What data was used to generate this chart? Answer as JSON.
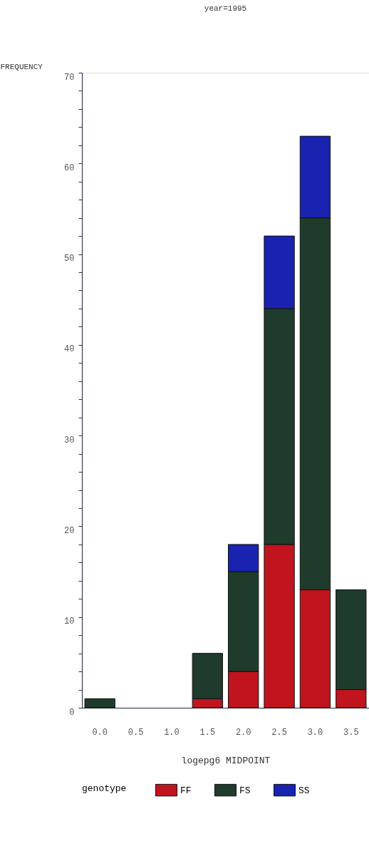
{
  "chart_data": {
    "type": "bar",
    "title": "year=1995",
    "xlabel": "logepg6 MIDPOINT",
    "ylabel": "FREQUENCY",
    "legend_title": "genotype",
    "categories": [
      "0.0",
      "0.5",
      "1.0",
      "1.5",
      "2.0",
      "2.5",
      "3.0",
      "3.5"
    ],
    "stacked": true,
    "legend": "bottom",
    "ylim": [
      0,
      70
    ],
    "yticks": [
      0,
      {
        "value": 2,
        "label": null
      },
      {
        "value": 4,
        "label": null
      },
      {
        "value": 6,
        "label": null
      },
      {
        "value": 8,
        "label": null
      },
      10,
      {
        "value": 12,
        "label": null
      },
      {
        "value": 14,
        "label": null
      },
      {
        "value": 16,
        "label": null
      },
      {
        "value": 18,
        "label": null
      },
      20,
      {
        "value": 22,
        "label": null
      },
      {
        "value": 24,
        "label": null
      },
      {
        "value": 26,
        "label": null
      },
      {
        "value": 28,
        "label": null
      },
      30,
      {
        "value": 32,
        "label": null
      },
      {
        "value": 34,
        "label": null
      },
      {
        "value": 36,
        "label": null
      },
      {
        "value": 38,
        "label": null
      },
      40,
      {
        "value": 42,
        "label": null
      },
      {
        "value": 44,
        "label": null
      },
      {
        "value": 46,
        "label": null
      },
      {
        "value": 48,
        "label": null
      },
      50,
      {
        "value": 52,
        "label": null
      },
      {
        "value": 54,
        "label": null
      },
      {
        "value": 56,
        "label": null
      },
      {
        "value": 58,
        "label": null
      },
      60,
      {
        "value": 62,
        "label": null
      },
      {
        "value": 64,
        "label": null
      },
      {
        "value": 66,
        "label": null
      },
      {
        "value": 68,
        "label": null
      },
      70
    ],
    "series": [
      {
        "name": "FF",
        "color": "#c0141e",
        "values": [
          0,
          0,
          0,
          1,
          4,
          18,
          13,
          2
        ]
      },
      {
        "name": "FS",
        "color": "#1f3b2c",
        "values": [
          1,
          0,
          0,
          5,
          11,
          26,
          41,
          11
        ]
      },
      {
        "name": "SS",
        "color": "#1a22b0",
        "values": [
          0,
          0,
          0,
          0,
          3,
          8,
          9,
          0
        ]
      }
    ]
  }
}
